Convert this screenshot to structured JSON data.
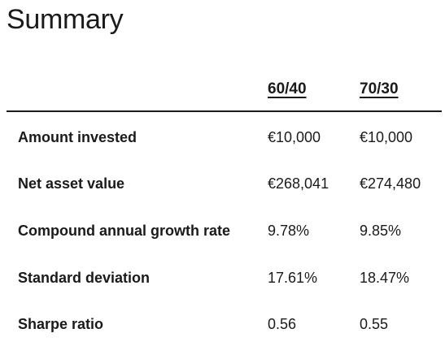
{
  "page": {
    "title": "Summary"
  },
  "table": {
    "columns": [
      "",
      "60/40",
      "70/30"
    ],
    "rows": [
      {
        "label": "Amount invested",
        "values": [
          "€10,000",
          "€10,000"
        ]
      },
      {
        "label": "Net asset value",
        "values": [
          "€268,041",
          "€274,480"
        ]
      },
      {
        "label": "Compound annual growth rate",
        "values": [
          "9.78%",
          "9.85%"
        ]
      },
      {
        "label": "Standard deviation",
        "values": [
          "17.61%",
          "18.47%"
        ]
      },
      {
        "label": "Sharpe ratio",
        "values": [
          "0.56",
          "0.55"
        ]
      }
    ]
  },
  "colors": {
    "text": "#1a1a1a",
    "background": "#ffffff",
    "rule": "#1a1a1a"
  }
}
